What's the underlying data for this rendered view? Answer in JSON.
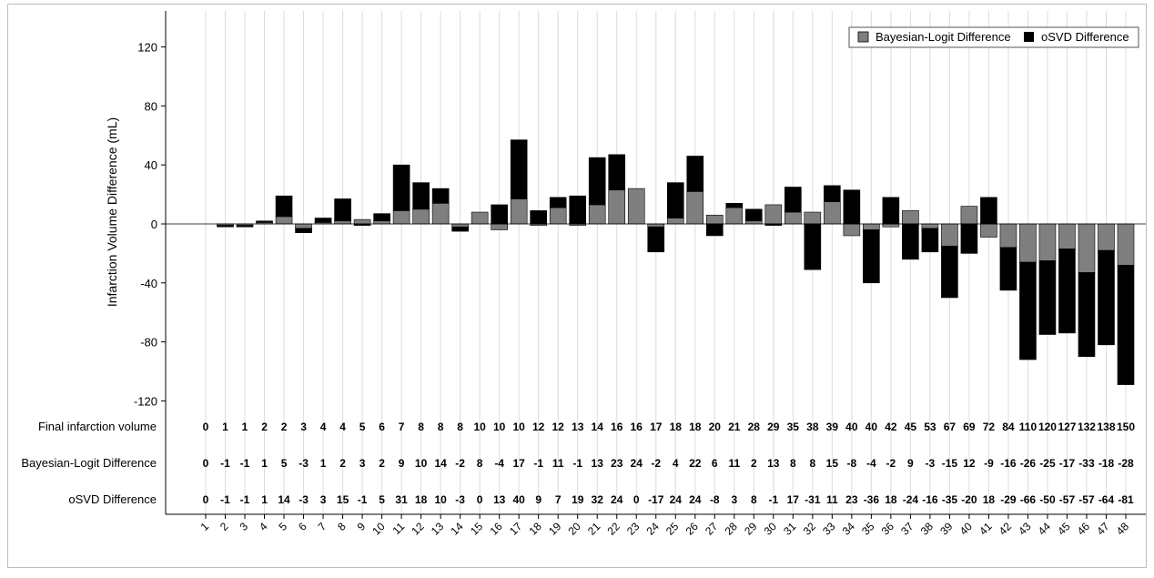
{
  "chart_data": {
    "type": "bar",
    "stacked": true,
    "ylabel": "Infarction Volume Difference (mL)",
    "ylim": [
      -130,
      135
    ],
    "yticks": [
      120,
      80,
      40,
      0,
      -40,
      -80,
      -120
    ],
    "grid": "vertical",
    "legend_position": "top-right",
    "categories": [
      "1",
      "2",
      "3",
      "4",
      "5",
      "6",
      "7",
      "8",
      "9",
      "10",
      "11",
      "12",
      "13",
      "14",
      "15",
      "16",
      "17",
      "18",
      "19",
      "20",
      "21",
      "22",
      "23",
      "24",
      "25",
      "26",
      "27",
      "28",
      "29",
      "30",
      "31",
      "32",
      "33",
      "34",
      "35",
      "36",
      "37",
      "38",
      "39",
      "40",
      "41",
      "42",
      "43",
      "44",
      "45",
      "46",
      "47",
      "48"
    ],
    "series": [
      {
        "name": "Bayesian-Logit Difference",
        "color": "#7f7f7f",
        "values": [
          0,
          -1,
          -1,
          1,
          5,
          -3,
          1,
          2,
          3,
          2,
          9,
          10,
          14,
          -2,
          8,
          -4,
          17,
          -1,
          11,
          -1,
          13,
          23,
          24,
          -2,
          4,
          22,
          6,
          11,
          2,
          13,
          8,
          8,
          15,
          -8,
          -4,
          -2,
          9,
          -3,
          -15,
          12,
          -9,
          -16,
          -26,
          -25,
          -17,
          -33,
          -18,
          -28
        ]
      },
      {
        "name": "oSVD Difference",
        "color": "#000000",
        "values": [
          0,
          -1,
          -1,
          1,
          14,
          -3,
          3,
          15,
          -1,
          5,
          31,
          18,
          10,
          -3,
          0,
          13,
          40,
          9,
          7,
          19,
          32,
          24,
          0,
          -17,
          24,
          24,
          -8,
          3,
          8,
          -1,
          17,
          -31,
          11,
          23,
          -36,
          18,
          -24,
          -16,
          -35,
          -20,
          18,
          -29,
          -66,
          -50,
          -57,
          -57,
          -64,
          -81
        ]
      }
    ],
    "table": {
      "rows": [
        {
          "label": "Final infarction volume",
          "values": [
            "0",
            "1",
            "1",
            "2",
            "2",
            "3",
            "4",
            "4",
            "5",
            "6",
            "7",
            "8",
            "8",
            "8",
            "10",
            "10",
            "10",
            "12",
            "12",
            "13",
            "14",
            "16",
            "16",
            "17",
            "18",
            "18",
            "20",
            "21",
            "28",
            "29",
            "35",
            "38",
            "39",
            "40",
            "40",
            "42",
            "45",
            "53",
            "67",
            "69",
            "72",
            "84",
            "110",
            "120",
            "127",
            "132",
            "138",
            "150"
          ]
        },
        {
          "label": "Bayesian-Logit Difference",
          "values": [
            "0",
            "-1",
            "-1",
            "1",
            "5",
            "-3",
            "1",
            "2",
            "3",
            "2",
            "9",
            "10",
            "14",
            "-2",
            "8",
            "-4",
            "17",
            "-1",
            "11",
            "-1",
            "13",
            "23",
            "24",
            "-2",
            "4",
            "22",
            "6",
            "11",
            "2",
            "13",
            "8",
            "8",
            "15",
            "-8",
            "-4",
            "-2",
            "9",
            "-3",
            "-15",
            "12",
            "-9",
            "-16",
            "-26",
            "-25",
            "-17",
            "-33",
            "-18",
            "-28"
          ]
        },
        {
          "label": "oSVD Difference",
          "values": [
            "0",
            "-1",
            "-1",
            "1",
            "14",
            "-3",
            "3",
            "15",
            "-1",
            "5",
            "31",
            "18",
            "10",
            "-3",
            "0",
            "13",
            "40",
            "9",
            "7",
            "19",
            "32",
            "24",
            "0",
            "-17",
            "24",
            "24",
            "-8",
            "3",
            "8",
            "-1",
            "17",
            "-31",
            "11",
            "23",
            "-36",
            "18",
            "-24",
            "-16",
            "-35",
            "-20",
            "18",
            "-29",
            "-66",
            "-50",
            "-57",
            "-57",
            "-64",
            "-81"
          ]
        }
      ]
    }
  }
}
